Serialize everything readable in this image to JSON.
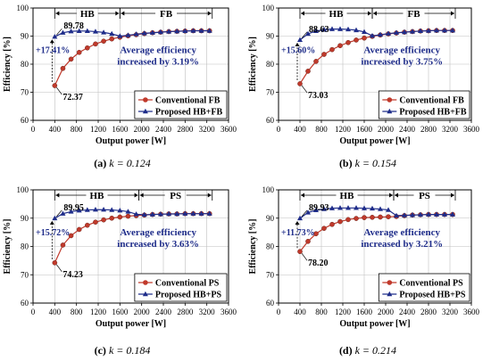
{
  "colors": {
    "conventional": "#C0392B",
    "proposed": "#1F2D8A",
    "annotation_text": "#1F2D8A",
    "grid": "#bfbfbf",
    "axis": "#000000"
  },
  "chart_data": [
    {
      "type": "line",
      "caption": {
        "label": "(a)",
        "text": "k = 0.124"
      },
      "xlabel": "Output power [W]",
      "ylabel": "Efficiency [%]",
      "xlim": [
        0,
        3600
      ],
      "ylim": [
        60,
        100
      ],
      "xticks": [
        "0",
        "400",
        "800",
        "1200",
        "1600",
        "2000",
        "2400",
        "2800",
        "3200",
        "3600"
      ],
      "yticks": [
        "60",
        "70",
        "80",
        "90",
        "100"
      ],
      "grid": true,
      "legend_position": "bottom-right",
      "mode_bands": [
        {
          "label": "HB",
          "from": 400,
          "to": 1600
        },
        {
          "label": "FB",
          "from": 1600,
          "to": 3300
        }
      ],
      "annotations": {
        "peak_label": "89.78",
        "min_label": "72.37",
        "gain_label": "+17.41%",
        "avg_text_1": "Average efficiency",
        "avg_text_2": "increased by 3.19%"
      },
      "series": [
        {
          "name": "Conventional FB",
          "marker": "circle",
          "x": [
            400,
            550,
            700,
            850,
            1000,
            1150,
            1300,
            1450,
            1600,
            1750,
            1900,
            2050,
            2200,
            2350,
            2500,
            2650,
            2800,
            2950,
            3100,
            3250
          ],
          "values": [
            72.37,
            78.5,
            81.8,
            84.2,
            85.8,
            87.2,
            88.2,
            89.0,
            89.6,
            90.1,
            90.5,
            90.9,
            91.2,
            91.4,
            91.6,
            91.7,
            91.8,
            91.9,
            91.9,
            91.9
          ]
        },
        {
          "name": "Proposed HB+FB",
          "marker": "triangle",
          "x": [
            400,
            550,
            700,
            850,
            1000,
            1150,
            1300,
            1450,
            1600,
            1750,
            1900,
            2050,
            2200,
            2350,
            2500,
            2650,
            2800,
            2950,
            3100,
            3250
          ],
          "values": [
            89.78,
            91.2,
            91.7,
            91.8,
            91.8,
            91.6,
            91.3,
            90.8,
            90.0,
            90.3,
            90.7,
            91.0,
            91.2,
            91.4,
            91.6,
            91.7,
            91.8,
            91.9,
            91.9,
            91.9
          ]
        }
      ]
    },
    {
      "type": "line",
      "caption": {
        "label": "(b)",
        "text": "k = 0.154"
      },
      "xlabel": "Output power [W]",
      "ylabel": "Efficiency [%]",
      "xlim": [
        0,
        3600
      ],
      "ylim": [
        60,
        100
      ],
      "xticks": [
        "0",
        "400",
        "800",
        "1200",
        "1600",
        "2000",
        "2400",
        "2800",
        "3200",
        "3600"
      ],
      "yticks": [
        "60",
        "70",
        "80",
        "90",
        "100"
      ],
      "grid": true,
      "legend_position": "bottom-right",
      "mode_bands": [
        {
          "label": "HB",
          "from": 400,
          "to": 1750
        },
        {
          "label": "FB",
          "from": 1750,
          "to": 3300
        }
      ],
      "annotations": {
        "peak_label": "88.63",
        "min_label": "73.03",
        "gain_label": "+15.60%",
        "avg_text_1": "Average efficiency",
        "avg_text_2": "increased by 3.75%"
      },
      "series": [
        {
          "name": "Conventional FB",
          "marker": "circle",
          "x": [
            400,
            550,
            700,
            850,
            1000,
            1150,
            1300,
            1450,
            1600,
            1750,
            1900,
            2050,
            2200,
            2350,
            2500,
            2650,
            2800,
            2950,
            3100,
            3250
          ],
          "values": [
            73.03,
            77.5,
            81.0,
            83.5,
            85.2,
            86.6,
            87.7,
            88.6,
            89.3,
            89.9,
            90.4,
            90.8,
            91.1,
            91.4,
            91.6,
            91.8,
            91.9,
            92.0,
            92.0,
            92.0
          ]
        },
        {
          "name": "Proposed HB+FB",
          "marker": "triangle",
          "x": [
            400,
            550,
            700,
            850,
            1000,
            1150,
            1300,
            1450,
            1600,
            1750,
            1900,
            2050,
            2200,
            2350,
            2500,
            2650,
            2800,
            2950,
            3100,
            3250
          ],
          "values": [
            88.63,
            90.8,
            91.8,
            92.3,
            92.5,
            92.5,
            92.4,
            92.1,
            91.5,
            90.1,
            90.5,
            90.9,
            91.2,
            91.4,
            91.6,
            91.8,
            91.9,
            92.0,
            92.0,
            92.0
          ]
        }
      ]
    },
    {
      "type": "line",
      "caption": {
        "label": "(c)",
        "text": "k = 0.184"
      },
      "xlabel": "Output power [W]",
      "ylabel": "Efficiency [%]",
      "xlim": [
        0,
        3600
      ],
      "ylim": [
        60,
        100
      ],
      "xticks": [
        "0",
        "400",
        "800",
        "1200",
        "1600",
        "2000",
        "2400",
        "2800",
        "3200",
        "3600"
      ],
      "yticks": [
        "60",
        "70",
        "80",
        "90",
        "100"
      ],
      "grid": true,
      "legend_position": "bottom-right",
      "mode_bands": [
        {
          "label": "HB",
          "from": 400,
          "to": 1950
        },
        {
          "label": "PS",
          "from": 1950,
          "to": 3300
        }
      ],
      "annotations": {
        "peak_label": "89.95",
        "min_label": "74.23",
        "gain_label": "+15.72%",
        "avg_text_1": "Average efficiency",
        "avg_text_2": "increased by 3.63%"
      },
      "series": [
        {
          "name": "Conventional PS",
          "marker": "circle",
          "x": [
            400,
            550,
            700,
            850,
            1000,
            1150,
            1300,
            1450,
            1600,
            1750,
            1900,
            2050,
            2200,
            2350,
            2500,
            2650,
            2800,
            2950,
            3100,
            3250
          ],
          "values": [
            74.23,
            80.5,
            83.8,
            86.0,
            87.5,
            88.6,
            89.4,
            90.0,
            90.4,
            90.7,
            90.9,
            91.1,
            91.3,
            91.4,
            91.5,
            91.5,
            91.6,
            91.6,
            91.6,
            91.6
          ]
        },
        {
          "name": "Proposed HB+PS",
          "marker": "triangle",
          "x": [
            400,
            550,
            700,
            850,
            1000,
            1150,
            1300,
            1450,
            1600,
            1750,
            1900,
            2050,
            2200,
            2350,
            2500,
            2650,
            2800,
            2950,
            3100,
            3250
          ],
          "values": [
            89.95,
            91.6,
            92.3,
            92.7,
            92.9,
            93.0,
            93.0,
            92.9,
            92.7,
            92.3,
            91.4,
            91.2,
            91.3,
            91.4,
            91.5,
            91.5,
            91.6,
            91.6,
            91.6,
            91.6
          ]
        }
      ]
    },
    {
      "type": "line",
      "caption": {
        "label": "(d)",
        "text": "k = 0.214"
      },
      "xlabel": "Output power [W]",
      "ylabel": "Efficiency [%]",
      "xlim": [
        0,
        3600
      ],
      "ylim": [
        60,
        100
      ],
      "xticks": [
        "0",
        "400",
        "800",
        "1200",
        "1600",
        "2000",
        "2400",
        "2800",
        "3200",
        "3600"
      ],
      "yticks": [
        "60",
        "70",
        "80",
        "90",
        "100"
      ],
      "grid": true,
      "legend_position": "bottom-right",
      "mode_bands": [
        {
          "label": "HB",
          "from": 400,
          "to": 2150
        },
        {
          "label": "PS",
          "from": 2150,
          "to": 3300
        }
      ],
      "annotations": {
        "peak_label": "89.93",
        "min_label": "78.20",
        "gain_label": "+11.73%",
        "avg_text_1": "Average efficiency",
        "avg_text_2": "increased by 3.21%"
      },
      "series": [
        {
          "name": "Conventional PS",
          "marker": "circle",
          "x": [
            400,
            550,
            700,
            850,
            1000,
            1150,
            1300,
            1450,
            1600,
            1750,
            1900,
            2050,
            2200,
            2350,
            2500,
            2650,
            2800,
            2950,
            3100,
            3250
          ],
          "values": [
            78.2,
            81.8,
            84.5,
            86.4,
            87.8,
            88.8,
            89.5,
            89.9,
            90.2,
            90.3,
            90.4,
            90.5,
            90.6,
            90.9,
            91.1,
            91.2,
            91.3,
            91.3,
            91.3,
            91.3
          ]
        },
        {
          "name": "Proposed HB+PS",
          "marker": "triangle",
          "x": [
            400,
            550,
            700,
            850,
            1000,
            1150,
            1300,
            1450,
            1600,
            1750,
            1900,
            2050,
            2200,
            2350,
            2500,
            2650,
            2800,
            2950,
            3100,
            3250
          ],
          "values": [
            89.93,
            92.0,
            92.8,
            93.2,
            93.5,
            93.6,
            93.6,
            93.6,
            93.5,
            93.4,
            93.2,
            92.9,
            90.9,
            91.0,
            91.1,
            91.2,
            91.3,
            91.3,
            91.3,
            91.3
          ]
        }
      ]
    }
  ]
}
